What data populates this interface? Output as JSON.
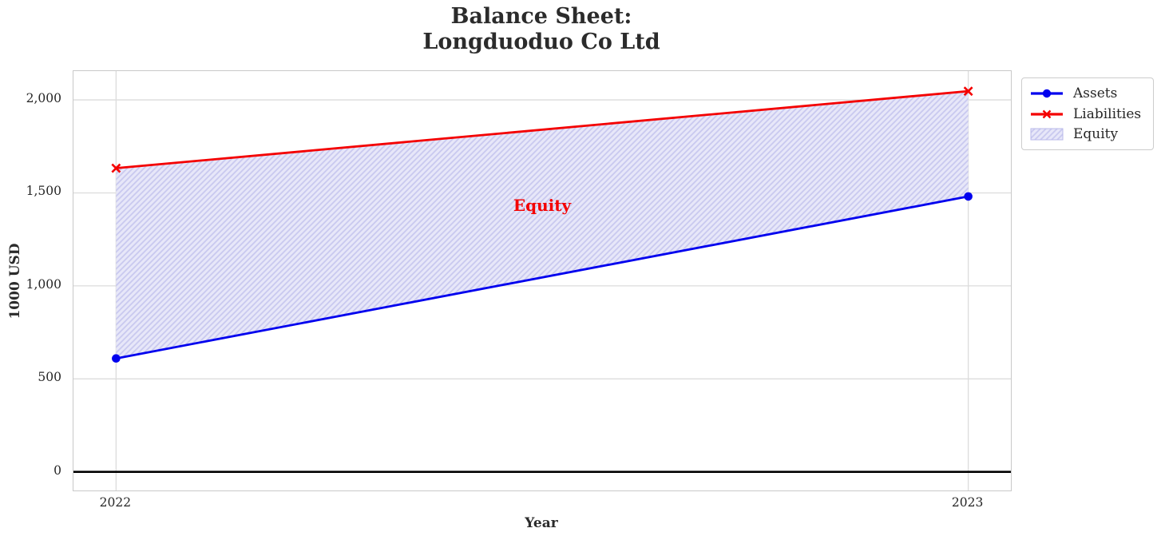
{
  "figure": {
    "title_line1": "Balance Sheet:",
    "title_line2": "Longduoduo Co Ltd",
    "xlabel": "Year",
    "ylabel": "1000 USD"
  },
  "legend": {
    "items": [
      {
        "label": "Assets",
        "marker": "line-circle",
        "color": "#0000ee"
      },
      {
        "label": "Liabilities",
        "marker": "line-x",
        "color": "#f40000"
      },
      {
        "label": "Equity",
        "marker": "hatched-patch",
        "color": "#0000ee"
      }
    ]
  },
  "chart_data": {
    "type": "line",
    "title": "Balance Sheet:\nLongduoduo Co Ltd",
    "xlabel": "Year",
    "ylabel": "1000 USD",
    "x": [
      2022,
      2023
    ],
    "x_tick_labels": [
      "2022",
      "2023"
    ],
    "series": [
      {
        "name": "Assets",
        "values": [
          610,
          1481
        ],
        "color": "#0000ee",
        "marker": "circle"
      },
      {
        "name": "Liabilities",
        "values": [
          1633,
          2047
        ],
        "color": "#f40000",
        "marker": "x"
      }
    ],
    "area_between": {
      "name": "Equity",
      "lower": "Assets",
      "upper": "Liabilities",
      "fill_color": "#e7e7f9",
      "hatch_color": "#c9c9ef",
      "hatch": "//"
    },
    "annotation": {
      "text": "Equity",
      "x": 2022.5,
      "y": 1435,
      "color": "#f40000",
      "bold": true
    },
    "xlim": [
      2021.95,
      2023.05
    ],
    "ylim": [
      -100,
      2155
    ],
    "y_ticks": [
      0,
      500,
      1000,
      1500,
      2000
    ],
    "y_tick_labels": [
      "0",
      "500",
      "1,000",
      "1,500",
      "2,000"
    ],
    "grid": true,
    "grid_color": "#dcdcdc",
    "zero_line": true,
    "zero_line_color": "#000000",
    "legend_position": "outside upper right"
  }
}
